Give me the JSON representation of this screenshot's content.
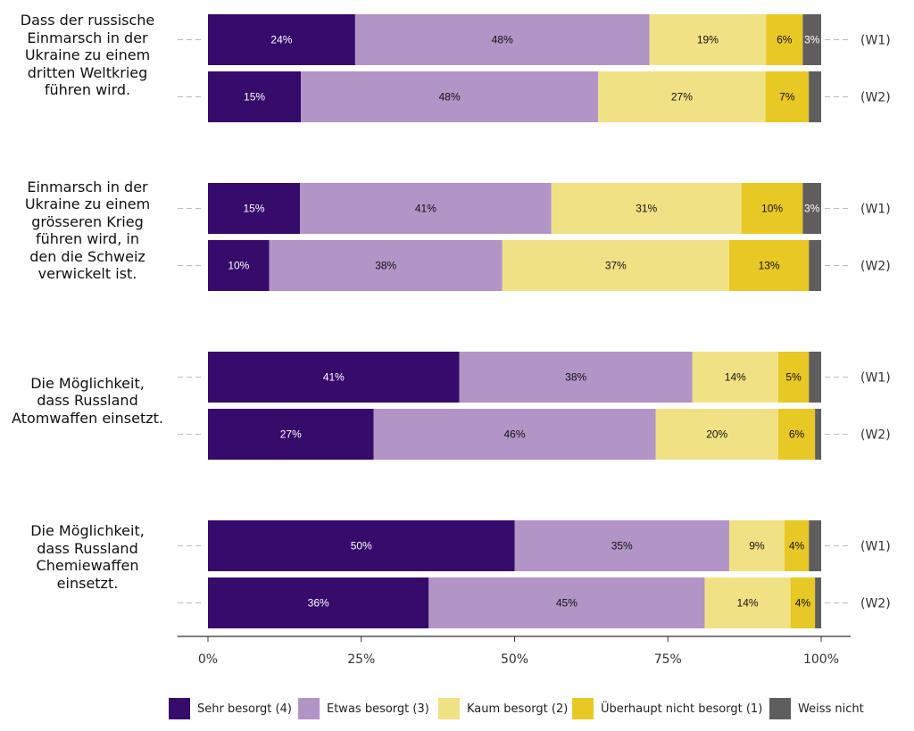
{
  "chart_data": {
    "type": "bar",
    "orientation": "horizontal",
    "stacked": true,
    "xlim": [
      0,
      100
    ],
    "x_ticks": [
      "0%",
      "25%",
      "50%",
      "75%",
      "100%"
    ],
    "legend_position": "bottom",
    "categories": [
      {
        "question": [
          "Dass der russische",
          "Einmarsch in der",
          "Ukraine zu einem",
          "dritten Weltkrieg",
          "führen wird."
        ],
        "waves": [
          {
            "wave": "(W1)",
            "values": [
              24,
              48,
              19,
              6,
              3
            ],
            "labels": [
              "24%",
              "48%",
              "19%",
              "6%",
              "3%"
            ]
          },
          {
            "wave": "(W2)",
            "values": [
              15,
              48,
              27,
              7,
              2
            ],
            "labels": [
              "15%",
              "48%",
              "27%",
              "7%",
              ""
            ]
          }
        ]
      },
      {
        "question": [
          "Einmarsch in der",
          "Ukraine zu einem",
          "grösseren Krieg",
          "führen wird, in",
          "den die Schweiz",
          "verwickelt ist."
        ],
        "waves": [
          {
            "wave": "(W1)",
            "values": [
              15,
              41,
              31,
              10,
              3
            ],
            "labels": [
              "15%",
              "41%",
              "31%",
              "10%",
              "3%"
            ]
          },
          {
            "wave": "(W2)",
            "values": [
              10,
              38,
              37,
              13,
              2
            ],
            "labels": [
              "10%",
              "38%",
              "37%",
              "13%",
              ""
            ]
          }
        ]
      },
      {
        "question": [
          "Die Möglichkeit,",
          "dass Russland",
          "Atomwaffen einsetzt."
        ],
        "waves": [
          {
            "wave": "(W1)",
            "values": [
              41,
              38,
              14,
              5,
              2
            ],
            "labels": [
              "41%",
              "38%",
              "14%",
              "5%",
              ""
            ]
          },
          {
            "wave": "(W2)",
            "values": [
              27,
              46,
              20,
              6,
              1
            ],
            "labels": [
              "27%",
              "46%",
              "20%",
              "6%",
              ""
            ]
          }
        ]
      },
      {
        "question": [
          "Die Möglichkeit,",
          "dass Russland",
          "Chemiewaffen",
          "einsetzt."
        ],
        "waves": [
          {
            "wave": "(W1)",
            "values": [
              50,
              35,
              9,
              4,
              2
            ],
            "labels": [
              "50%",
              "35%",
              "9%",
              "4%",
              ""
            ]
          },
          {
            "wave": "(W2)",
            "values": [
              36,
              45,
              14,
              4,
              1
            ],
            "labels": [
              "36%",
              "45%",
              "14%",
              "4%",
              ""
            ]
          }
        ]
      }
    ],
    "series": [
      {
        "name": "Sehr besorgt (4)",
        "color": "#360b6b",
        "text_color": "#ffffff"
      },
      {
        "name": "Etwas besorgt (3)",
        "color": "#b294c6",
        "text_color": "#111111"
      },
      {
        "name": "Kaum besorgt (2)",
        "color": "#f1e185",
        "text_color": "#111111"
      },
      {
        "name": "Überhaupt nicht besorgt (1)",
        "color": "#e8c824",
        "text_color": "#111111"
      },
      {
        "name": "Weiss nicht",
        "color": "#5e5e5e",
        "text_color": "#ffffff"
      }
    ]
  }
}
